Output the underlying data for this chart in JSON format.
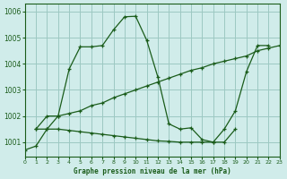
{
  "title": "Graphe pression niveau de la mer (hPa)",
  "bg_color": "#d0ecea",
  "grid_color": "#9dc8c2",
  "line_color": "#1a5c1a",
  "xlim": [
    0,
    23
  ],
  "ylim": [
    1000.45,
    1006.3
  ],
  "yticks": [
    1001,
    1002,
    1003,
    1004,
    1005,
    1006
  ],
  "xticks": [
    0,
    1,
    2,
    3,
    4,
    5,
    6,
    7,
    8,
    9,
    10,
    11,
    12,
    13,
    14,
    15,
    16,
    17,
    18,
    19,
    20,
    21,
    22,
    23
  ],
  "series_peak_x": [
    0,
    1,
    2,
    3,
    4,
    5,
    6,
    7,
    8,
    9,
    10,
    11,
    12,
    13,
    14,
    15,
    16,
    17,
    18,
    19,
    20,
    21,
    22
  ],
  "series_peak_y": [
    1000.7,
    1000.85,
    1001.5,
    1002.0,
    1003.8,
    1004.65,
    1004.65,
    1004.7,
    1005.3,
    1005.8,
    1005.82,
    1004.9,
    1003.5,
    1001.7,
    1001.5,
    1001.55,
    1001.1,
    1001.0,
    1001.5,
    1002.2,
    1003.7,
    1004.7,
    1004.7
  ],
  "series_rise_x": [
    1,
    2,
    3,
    4,
    5,
    6,
    7,
    8,
    9,
    10,
    11,
    12,
    13,
    14,
    15,
    16,
    17,
    18,
    19,
    20,
    21,
    22,
    23
  ],
  "series_rise_y": [
    1001.5,
    1002.0,
    1002.0,
    1002.1,
    1002.2,
    1002.4,
    1002.5,
    1002.7,
    1002.85,
    1003.0,
    1003.15,
    1003.3,
    1003.45,
    1003.6,
    1003.75,
    1003.85,
    1004.0,
    1004.1,
    1004.2,
    1004.3,
    1004.5,
    1004.6,
    1004.7
  ],
  "series_flat_x": [
    1,
    2,
    3,
    4,
    5,
    6,
    7,
    8,
    9,
    10,
    11,
    12,
    13,
    14,
    15,
    16,
    17,
    18,
    19
  ],
  "series_flat_y": [
    1001.5,
    1001.5,
    1001.5,
    1001.45,
    1001.4,
    1001.35,
    1001.3,
    1001.25,
    1001.2,
    1001.15,
    1001.1,
    1001.05,
    1001.03,
    1001.0,
    1001.0,
    1001.0,
    1001.0,
    1001.0,
    1001.5
  ]
}
